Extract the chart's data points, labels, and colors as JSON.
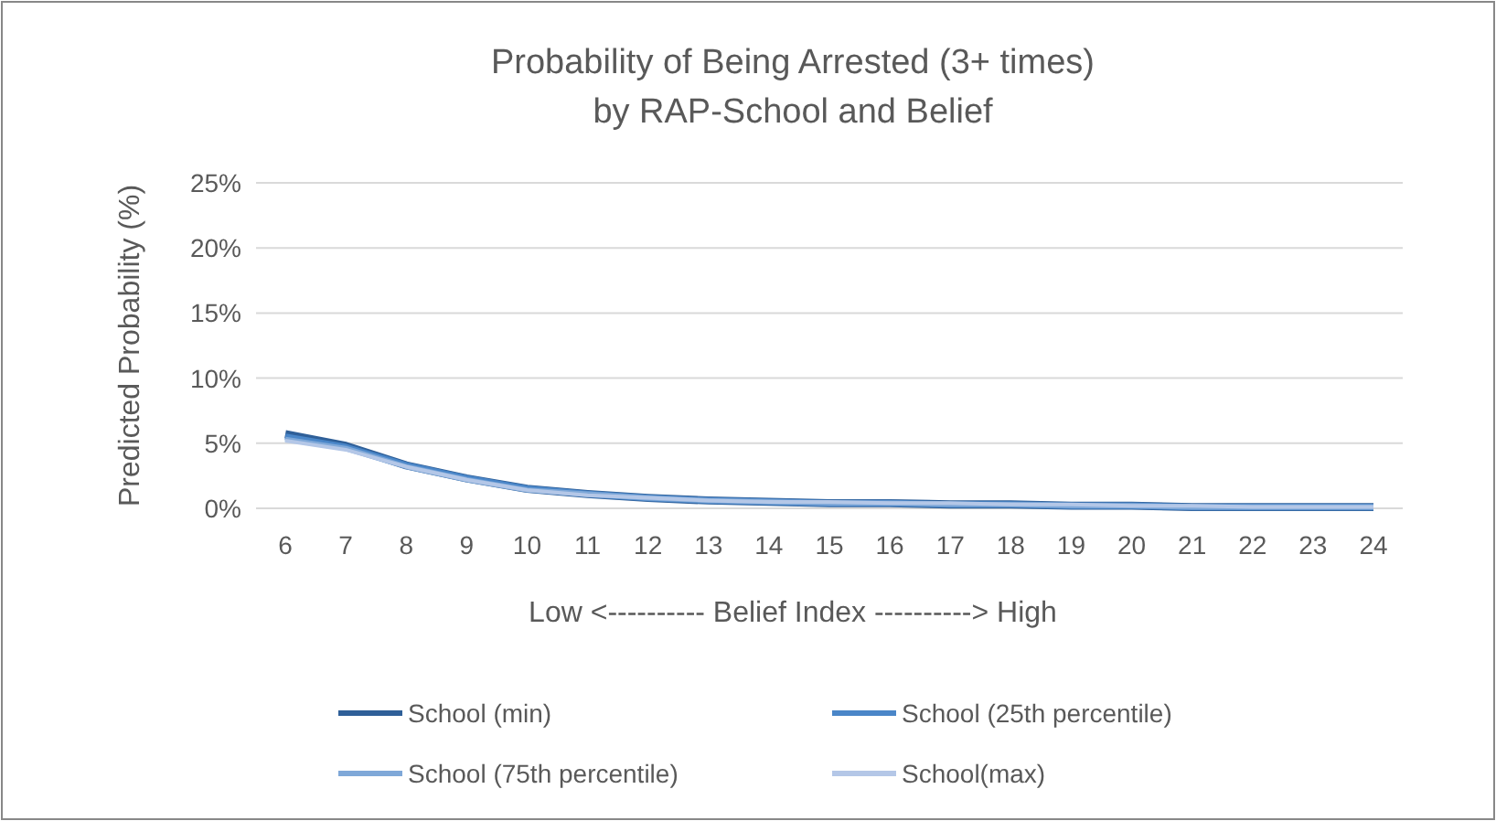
{
  "chart_data": {
    "type": "line",
    "title": "Probability of Being Arrested (3+ times)\nby RAP-School and Belief",
    "xlabel": "Low <---------- Belief Index ----------> High",
    "ylabel": "Predicted Probability (%)",
    "categories": [
      "6",
      "7",
      "8",
      "9",
      "10",
      "11",
      "12",
      "13",
      "14",
      "15",
      "16",
      "17",
      "18",
      "19",
      "20",
      "21",
      "22",
      "23",
      "24"
    ],
    "ylim": [
      0,
      25
    ],
    "yticks": [
      {
        "value": 0,
        "label": "0%"
      },
      {
        "value": 5,
        "label": "5%"
      },
      {
        "value": 10,
        "label": "10%"
      },
      {
        "value": 15,
        "label": "15%"
      },
      {
        "value": 20,
        "label": "20%"
      },
      {
        "value": 25,
        "label": "25%"
      }
    ],
    "grid": "y",
    "legend": "bottom",
    "marker": "none",
    "series": [
      {
        "name": "School (min)",
        "color": "#2f5f98",
        "values": [
          5.7,
          4.8,
          3.3,
          2.3,
          1.5,
          1.1,
          0.8,
          0.6,
          0.5,
          0.4,
          0.4,
          0.3,
          0.3,
          0.2,
          0.2,
          0.1,
          0.1,
          0.1,
          0.1
        ]
      },
      {
        "name": "School (25th percentile)",
        "color": "#4a86c8",
        "values": [
          5.5,
          4.7,
          3.3,
          2.3,
          1.5,
          1.1,
          0.8,
          0.6,
          0.5,
          0.4,
          0.4,
          0.3,
          0.3,
          0.2,
          0.2,
          0.1,
          0.1,
          0.1,
          0.1
        ]
      },
      {
        "name": "School (75th percentile)",
        "color": "#7fa8d8",
        "values": [
          5.3,
          4.6,
          3.2,
          2.2,
          1.4,
          1.1,
          0.8,
          0.6,
          0.5,
          0.4,
          0.4,
          0.3,
          0.3,
          0.2,
          0.2,
          0.1,
          0.1,
          0.1,
          0.1
        ]
      },
      {
        "name": "School(max)",
        "color": "#b4c7e7",
        "values": [
          5.2,
          4.5,
          3.2,
          2.2,
          1.4,
          1.0,
          0.8,
          0.6,
          0.5,
          0.5,
          0.4,
          0.4,
          0.3,
          0.3,
          0.2,
          0.2,
          0.1,
          0.1,
          0.1
        ]
      }
    ]
  }
}
